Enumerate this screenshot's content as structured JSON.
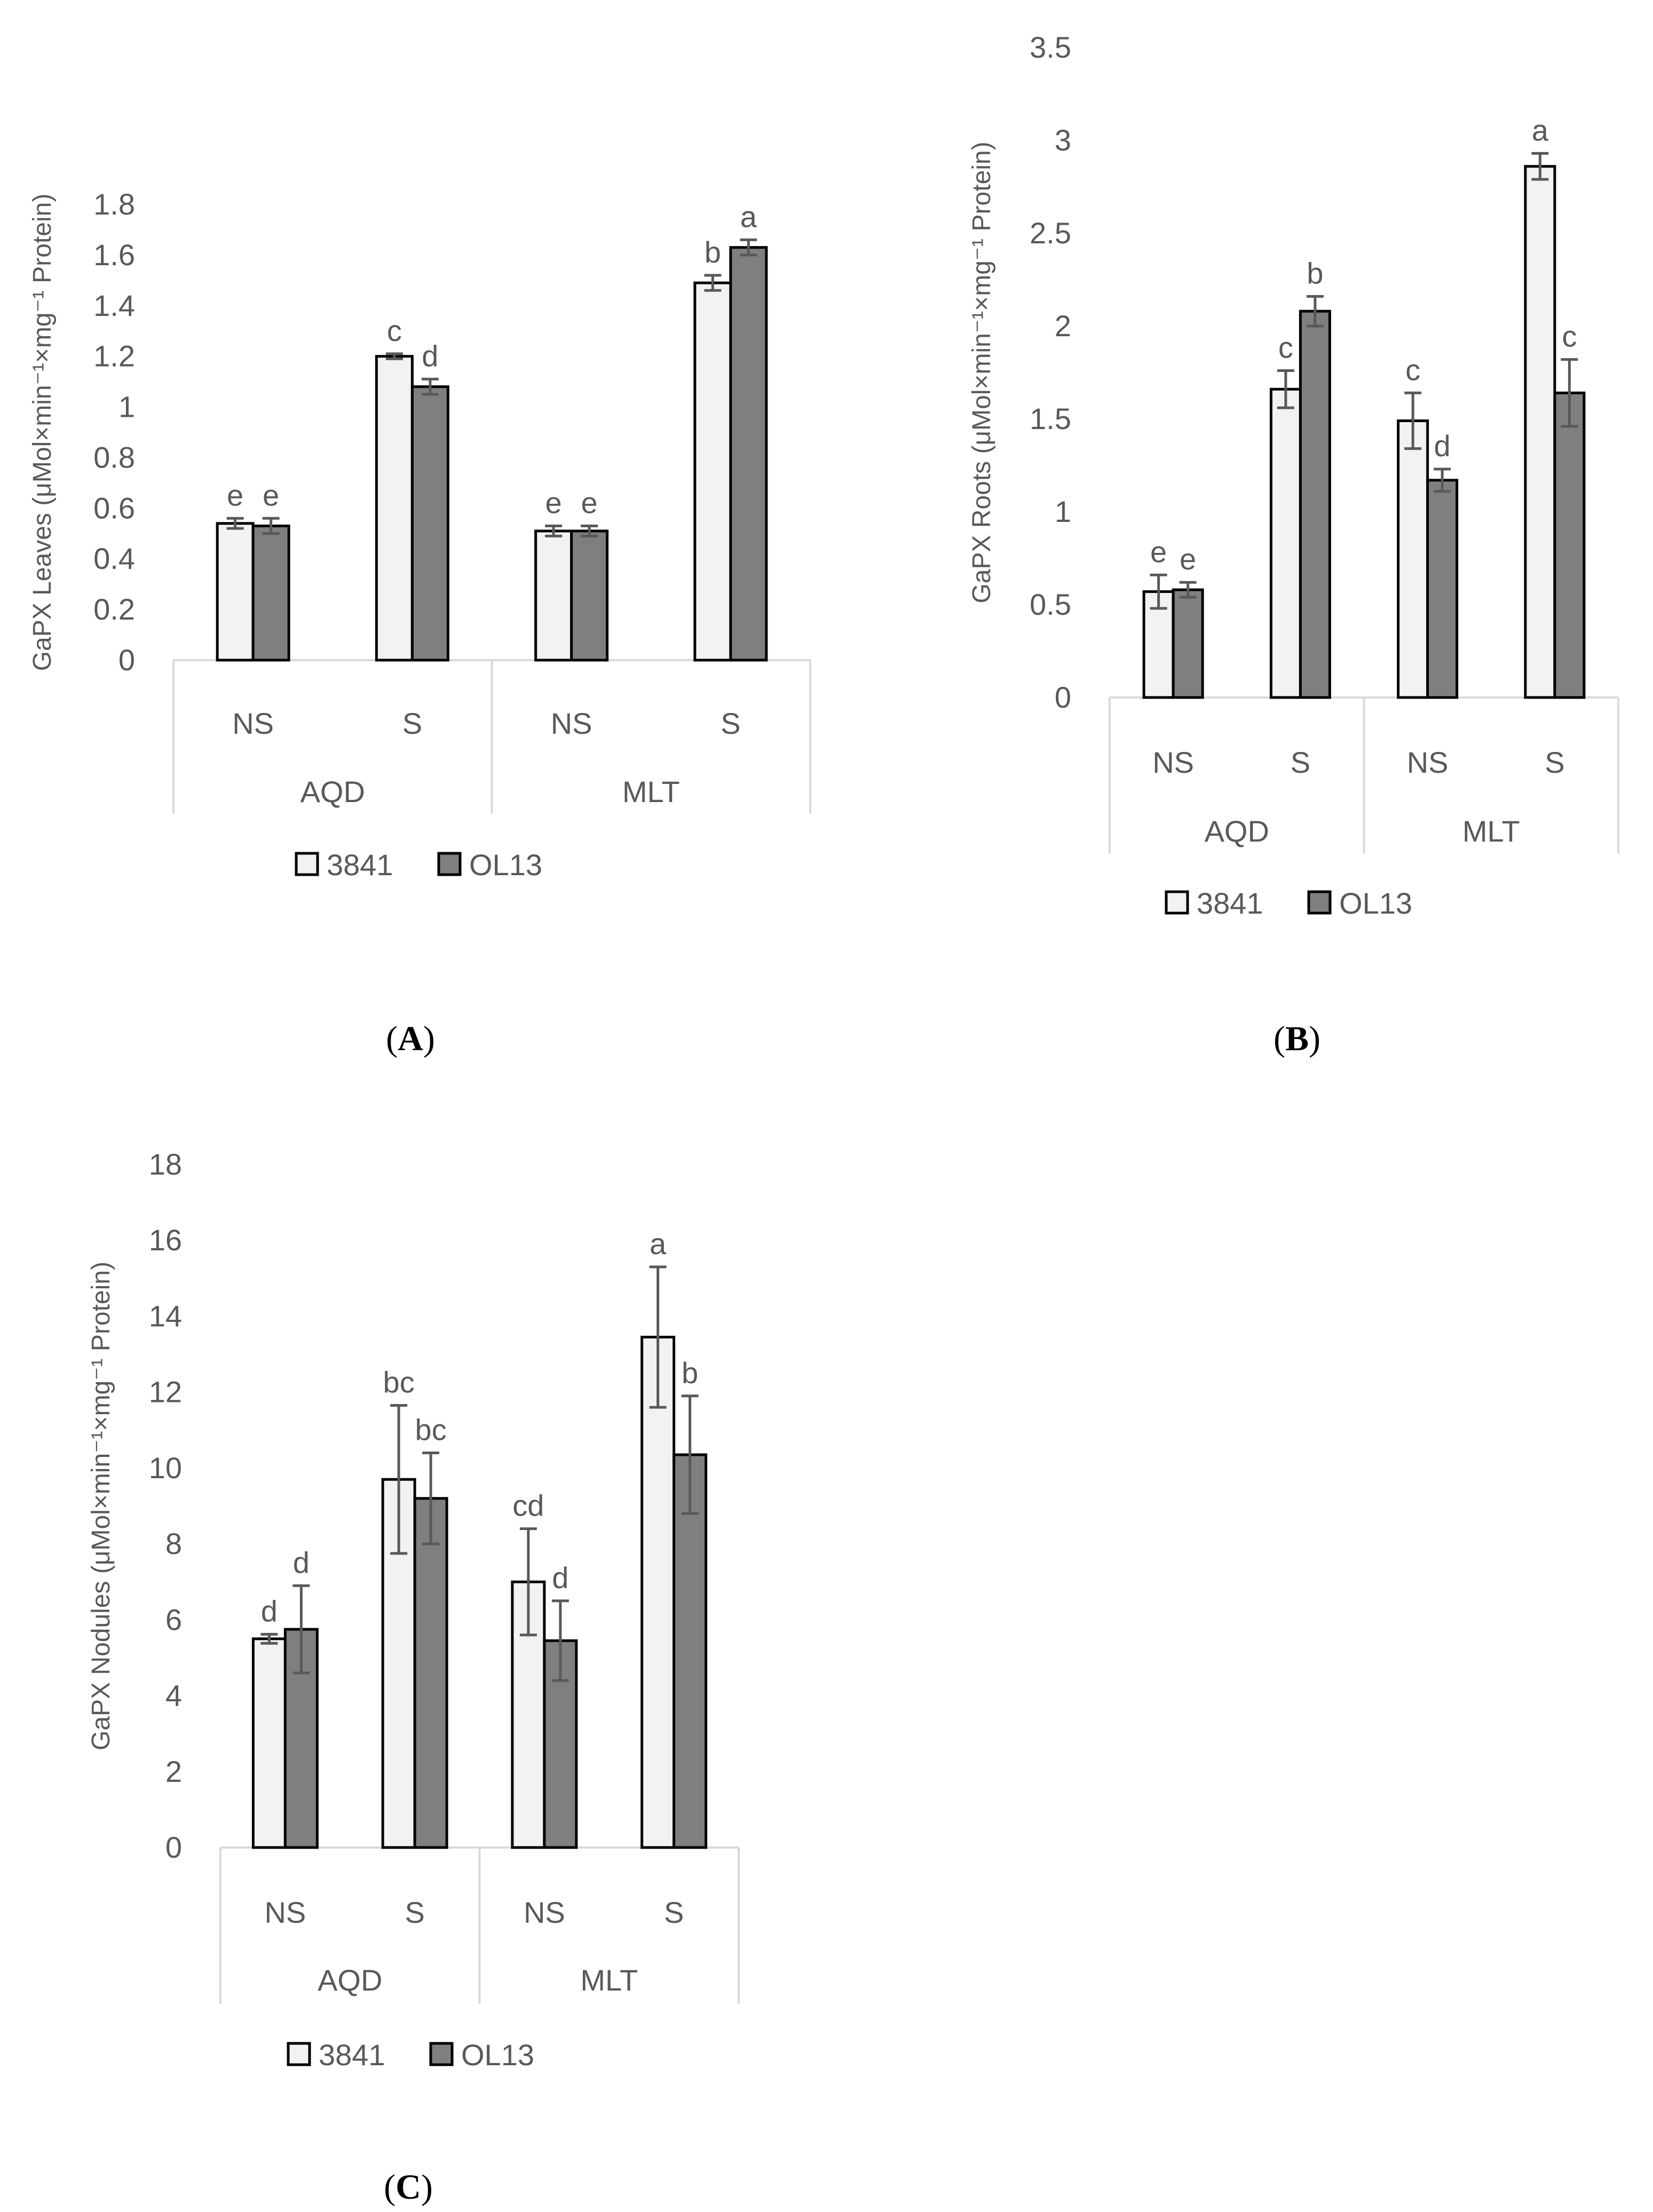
{
  "colors": {
    "series_3841": "#F2F2F2",
    "series_OL13": "#7F7F7F",
    "text": "#595959",
    "axis": "#D9D9D9"
  },
  "legend": [
    "3841",
    "OL13"
  ],
  "chart_data": [
    {
      "panel": "A",
      "panel_label": "A",
      "type": "bar",
      "ylabel": "GaPX Leaves (μMol×min⁻¹×mg⁻¹ Protein)",
      "ylim": [
        0,
        1.8
      ],
      "yticks": [
        0,
        0.2,
        0.4,
        0.6,
        0.8,
        1,
        1.2,
        1.4,
        1.6,
        1.8
      ],
      "groups": [
        "AQD",
        "MLT"
      ],
      "categories": [
        "NS",
        "S",
        "NS",
        "S"
      ],
      "series": [
        {
          "name": "3841",
          "values": [
            0.54,
            1.2,
            0.51,
            1.49
          ],
          "errors": [
            0.02,
            0.01,
            0.02,
            0.03
          ],
          "letters": [
            "e",
            "c",
            "e",
            "b"
          ]
        },
        {
          "name": "OL13",
          "values": [
            0.53,
            1.08,
            0.51,
            1.63
          ],
          "errors": [
            0.03,
            0.03,
            0.02,
            0.03
          ],
          "letters": [
            "e",
            "d",
            "e",
            "a"
          ]
        }
      ]
    },
    {
      "panel": "B",
      "panel_label": "B",
      "type": "bar",
      "ylabel": "GaPX Roots (μMol×min⁻¹×mg⁻¹ Protein)",
      "ylim": [
        0,
        3.5
      ],
      "yticks": [
        0,
        0.5,
        1,
        1.5,
        2,
        2.5,
        3,
        3.5
      ],
      "groups": [
        "AQD",
        "MLT"
      ],
      "categories": [
        "NS",
        "S",
        "NS",
        "S"
      ],
      "series": [
        {
          "name": "3841",
          "values": [
            0.57,
            1.66,
            1.49,
            2.86
          ],
          "errors": [
            0.09,
            0.1,
            0.15,
            0.07
          ],
          "letters": [
            "e",
            "c",
            "c",
            "a"
          ]
        },
        {
          "name": "OL13",
          "values": [
            0.58,
            2.08,
            1.17,
            1.64
          ],
          "errors": [
            0.04,
            0.08,
            0.06,
            0.18
          ],
          "letters": [
            "e",
            "b",
            "d",
            "c"
          ]
        }
      ]
    },
    {
      "panel": "C",
      "panel_label": "C",
      "type": "bar",
      "ylabel": "GaPX Nodules (μMol×min⁻¹×mg⁻¹ Protein)",
      "ylim": [
        0,
        18
      ],
      "yticks": [
        0,
        2,
        4,
        6,
        8,
        10,
        12,
        14,
        16,
        18
      ],
      "groups": [
        "AQD",
        "MLT"
      ],
      "categories": [
        "NS",
        "S",
        "NS",
        "S"
      ],
      "series": [
        {
          "name": "3841",
          "values": [
            5.5,
            9.7,
            7.0,
            13.45
          ],
          "errors": [
            0.12,
            1.95,
            1.4,
            1.85
          ],
          "letters": [
            "d",
            "bc",
            "cd",
            "a"
          ]
        },
        {
          "name": "OL13",
          "values": [
            5.75,
            9.2,
            5.45,
            10.35
          ],
          "errors": [
            1.15,
            1.2,
            1.05,
            1.55
          ],
          "letters": [
            "d",
            "bc",
            "d",
            "b"
          ]
        }
      ]
    }
  ]
}
